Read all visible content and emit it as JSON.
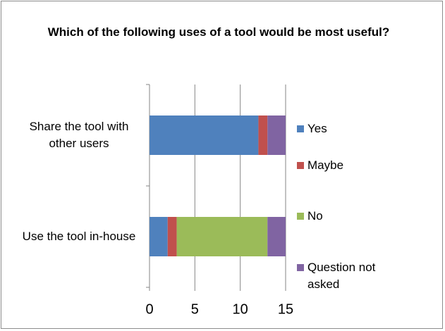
{
  "chart_data": {
    "type": "bar",
    "orientation": "horizontal",
    "stacked": true,
    "title": "Which of the following uses of a tool would be most useful?",
    "categories": [
      "Share the tool with other users",
      "Use the tool in-house"
    ],
    "series": [
      {
        "name": "Yes",
        "color": "#4f81bd",
        "values": [
          12,
          2
        ]
      },
      {
        "name": "Maybe",
        "color": "#c0504d",
        "values": [
          1,
          1
        ]
      },
      {
        "name": "No",
        "color": "#9bbb59",
        "values": [
          0,
          10
        ]
      },
      {
        "name": "Question not asked",
        "color": "#8064a2",
        "values": [
          2,
          2
        ]
      }
    ],
    "xlim": [
      0,
      15
    ],
    "xticks": [
      0,
      5,
      10,
      15
    ],
    "grid": true,
    "legend": "right"
  }
}
